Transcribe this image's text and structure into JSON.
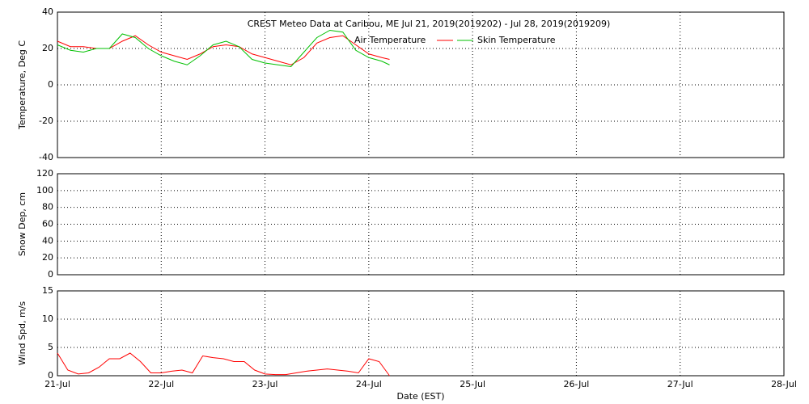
{
  "chart_data": [
    {
      "type": "line",
      "title": "CREST Meteo Data at Caribou, ME   Jul 21, 2019(2019202) - Jul 28, 2019(2019209)",
      "ylabel": "Temperature, Deg C",
      "ylim": [
        -40,
        40
      ],
      "yticks": [
        -40,
        -20,
        0,
        20,
        40
      ],
      "grid": true,
      "x": [
        0,
        0.125,
        0.25,
        0.375,
        0.5,
        0.625,
        0.75,
        0.875,
        1.0,
        1.125,
        1.25,
        1.375,
        1.5,
        1.625,
        1.75,
        1.875,
        2.0,
        2.125,
        2.25,
        2.375,
        2.5,
        2.625,
        2.75,
        2.875,
        3.0,
        3.125,
        3.2
      ],
      "series": [
        {
          "name": "Air Temperature",
          "color": "#ff0000",
          "values": [
            24,
            21,
            21,
            20,
            20,
            24,
            27,
            22,
            18,
            16,
            14,
            17,
            21,
            22,
            21,
            17,
            15,
            13,
            11,
            15,
            23,
            26,
            27,
            22,
            17,
            15,
            14
          ]
        },
        {
          "name": "Skin Temperature",
          "color": "#00c000",
          "values": [
            22,
            19,
            18,
            20,
            20,
            28,
            26,
            20,
            16,
            13,
            11,
            16,
            22,
            24,
            21,
            14,
            12,
            11,
            10,
            18,
            26,
            30,
            29,
            19,
            15,
            13,
            11
          ]
        }
      ]
    },
    {
      "type": "line",
      "ylabel": "Snow Dep, cm",
      "ylim": [
        0,
        120
      ],
      "yticks": [
        0,
        20,
        40,
        60,
        80,
        100,
        120
      ],
      "grid": true,
      "series": []
    },
    {
      "type": "line",
      "ylabel": "Wind Spd, m/s",
      "xlabel": "Date (EST)",
      "ylim": [
        0,
        15
      ],
      "yticks": [
        0,
        5,
        10,
        15
      ],
      "grid": true,
      "xlim": [
        0,
        7
      ],
      "xticks": [
        {
          "value": 0,
          "label": "21-Jul"
        },
        {
          "value": 1,
          "label": "22-Jul"
        },
        {
          "value": 2,
          "label": "23-Jul"
        },
        {
          "value": 3,
          "label": "24-Jul"
        },
        {
          "value": 4,
          "label": "25-Jul"
        },
        {
          "value": 5,
          "label": "26-Jul"
        },
        {
          "value": 6,
          "label": "27-Jul"
        },
        {
          "value": 7,
          "label": "28-Jul"
        }
      ],
      "x": [
        0,
        0.1,
        0.2,
        0.3,
        0.4,
        0.5,
        0.6,
        0.7,
        0.8,
        0.9,
        1.0,
        1.1,
        1.2,
        1.3,
        1.4,
        1.5,
        1.6,
        1.7,
        1.8,
        1.9,
        2.0,
        2.1,
        2.2,
        2.3,
        2.4,
        2.5,
        2.6,
        2.7,
        2.8,
        2.9,
        3.0,
        3.1,
        3.2
      ],
      "series": [
        {
          "name": "Wind Speed",
          "color": "#ff0000",
          "values": [
            4,
            1,
            0.3,
            0.5,
            1.5,
            3,
            3,
            4,
            2.5,
            0.5,
            0.5,
            0.8,
            1,
            0.5,
            3.5,
            3.2,
            3,
            2.5,
            2.5,
            1,
            0.3,
            0.2,
            0.2,
            0.5,
            0.8,
            1,
            1.2,
            1,
            0.8,
            0.5,
            3,
            2.5,
            0
          ]
        }
      ]
    }
  ]
}
